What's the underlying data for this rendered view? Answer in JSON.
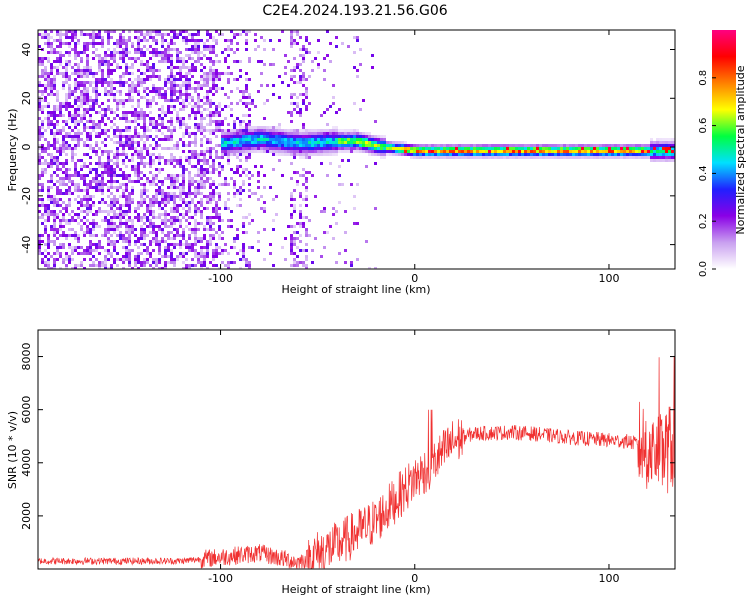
{
  "title": "C2E4.2024.193.21.56.G06",
  "chart_data": [
    {
      "type": "heatmap",
      "name": "spectrogram",
      "xlabel": "Height of straight line (km)",
      "ylabel": "Frequency (Hz)",
      "xlim": [
        -194,
        134
      ],
      "ylim": [
        -50,
        48
      ],
      "x_ticks": [
        -100,
        0,
        100
      ],
      "y_ticks": [
        -40,
        -20,
        0,
        20,
        40
      ],
      "colorbar": {
        "label": "Normalized spectral amplitude",
        "range": [
          0.0,
          1.0
        ],
        "ticks": [
          0.0,
          0.2,
          0.4,
          0.6,
          0.8
        ],
        "colormap": [
          "#ffffff",
          "#c9a0f0",
          "#8a00e6",
          "#2020ff",
          "#00e0ff",
          "#00ff40",
          "#ffff00",
          "#ff8000",
          "#ff0000",
          "#ff0080"
        ]
      },
      "ridge": {
        "description_points_x": [
          -100,
          -80,
          -60,
          -40,
          -30,
          -20,
          -10,
          0,
          50,
          100,
          134
        ],
        "description_points_y": [
          2,
          4,
          2,
          3,
          3,
          1,
          0,
          -1,
          -1,
          -1,
          -1
        ]
      }
    },
    {
      "type": "line",
      "name": "snr",
      "xlabel": "Height of straight line (km)",
      "ylabel": "SNR (10 * v/v)",
      "xlim": [
        -194,
        134
      ],
      "ylim": [
        0,
        9000
      ],
      "x_ticks": [
        -100,
        0,
        100
      ],
      "y_ticks": [
        2000,
        4000,
        6000,
        8000
      ],
      "color": "#f03030",
      "envelope_x": [
        -194,
        -120,
        -100,
        -80,
        -60,
        -40,
        -20,
        -10,
        0,
        10,
        20,
        30,
        50,
        60,
        80,
        100,
        110,
        120,
        125,
        130,
        134
      ],
      "envelope_y": [
        300,
        300,
        450,
        600,
        250,
        900,
        1800,
        2600,
        3400,
        4000,
        4800,
        5100,
        5150,
        5100,
        4950,
        4850,
        4800,
        4600,
        4300,
        4500,
        4700
      ]
    }
  ]
}
